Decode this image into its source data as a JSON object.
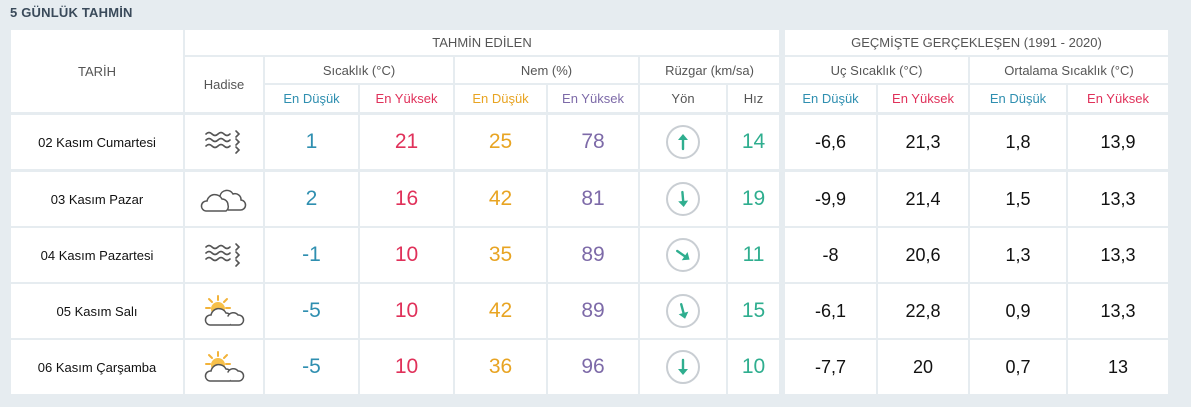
{
  "title": "5 GÜNLÜK TAHMİN",
  "headers": {
    "date": "TARİH",
    "forecast": "TAHMİN EDİLEN",
    "history": "GEÇMİŞTE GERÇEKLEŞEN (1991 - 2020)",
    "event": "Hadise",
    "temp": "Sıcaklık (°C)",
    "humidity": "Nem (%)",
    "wind": "Rüzgar (km/sa)",
    "extreme": "Uç Sıcaklık (°C)",
    "average": "Ortalama Sıcaklık (°C)",
    "min": "En Düşük",
    "max": "En Yüksek",
    "direction": "Yön",
    "speed": "Hız"
  },
  "colors": {
    "min": "#2f8fb0",
    "max": "#e0315a",
    "hum_min": "#e8a422",
    "hum_max": "#7d6aa8",
    "wind_speed": "#2fae8f",
    "arrow": "#2fae8f"
  },
  "rows": [
    {
      "date": "02 Kasım Cumartesi",
      "icon": "fog-icon",
      "temp_min": "1",
      "temp_max": "21",
      "hum_min": "25",
      "hum_max": "78",
      "wind_dir_deg": 0,
      "wind_speed": "14",
      "ext_min": "-6,6",
      "ext_max": "21,3",
      "avg_min": "1,8",
      "avg_max": "13,9"
    },
    {
      "date": "03 Kasım Pazar",
      "icon": "cloudy-icon",
      "temp_min": "2",
      "temp_max": "16",
      "hum_min": "42",
      "hum_max": "81",
      "wind_dir_deg": 175,
      "wind_speed": "19",
      "ext_min": "-9,9",
      "ext_max": "21,4",
      "avg_min": "1,5",
      "avg_max": "13,3"
    },
    {
      "date": "04 Kasım Pazartesi",
      "icon": "fog-icon",
      "temp_min": "-1",
      "temp_max": "10",
      "hum_min": "35",
      "hum_max": "89",
      "wind_dir_deg": 125,
      "wind_speed": "11",
      "ext_min": "-8",
      "ext_max": "20,6",
      "avg_min": "1,3",
      "avg_max": "13,3"
    },
    {
      "date": "05 Kasım Salı",
      "icon": "partly-cloudy-icon",
      "temp_min": "-5",
      "temp_max": "10",
      "hum_min": "42",
      "hum_max": "89",
      "wind_dir_deg": 165,
      "wind_speed": "15",
      "ext_min": "-6,1",
      "ext_max": "22,8",
      "avg_min": "0,9",
      "avg_max": "13,3"
    },
    {
      "date": "06 Kasım Çarşamba",
      "icon": "partly-cloudy-icon",
      "temp_min": "-5",
      "temp_max": "10",
      "hum_min": "36",
      "hum_max": "96",
      "wind_dir_deg": 180,
      "wind_speed": "10",
      "ext_min": "-7,7",
      "ext_max": "20",
      "avg_min": "0,7",
      "avg_max": "13"
    }
  ]
}
